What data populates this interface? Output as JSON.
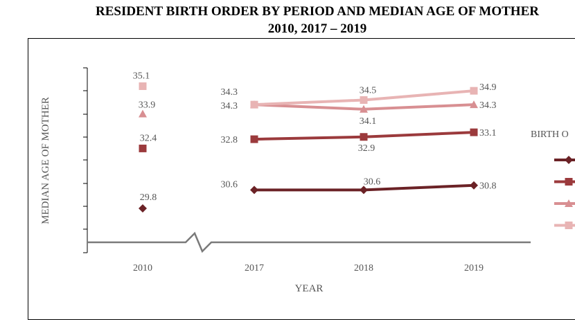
{
  "chart_data": {
    "type": "line",
    "title_line1": "RESIDENT BIRTH ORDER BY PERIOD AND MEDIAN AGE OF MOTHER",
    "title_line2": "2010, 2017 – 2019",
    "xlabel": "YEAR",
    "ylabel": "MEDIAN AGE OF MOTHER",
    "legend_title": "BIRTH O",
    "legend_position": "right",
    "categories": [
      "2010",
      "2017",
      "2018",
      "2019"
    ],
    "axis_break_between": [
      "2010",
      "2017"
    ],
    "ylim": [
      27,
      36
    ],
    "series": [
      {
        "values": [
          29.8,
          30.6,
          30.6,
          30.8
        ],
        "color": "#6b2226",
        "marker": "diamond"
      },
      {
        "values": [
          32.4,
          32.8,
          32.9,
          33.1
        ],
        "color": "#9b3a3c",
        "marker": "square"
      },
      {
        "values": [
          33.9,
          34.3,
          34.1,
          34.3
        ],
        "color": "#d88f92",
        "marker": "triangle"
      },
      {
        "values": [
          35.1,
          34.3,
          34.5,
          34.9
        ],
        "color": "#e8b4b4",
        "marker": "square"
      }
    ]
  }
}
